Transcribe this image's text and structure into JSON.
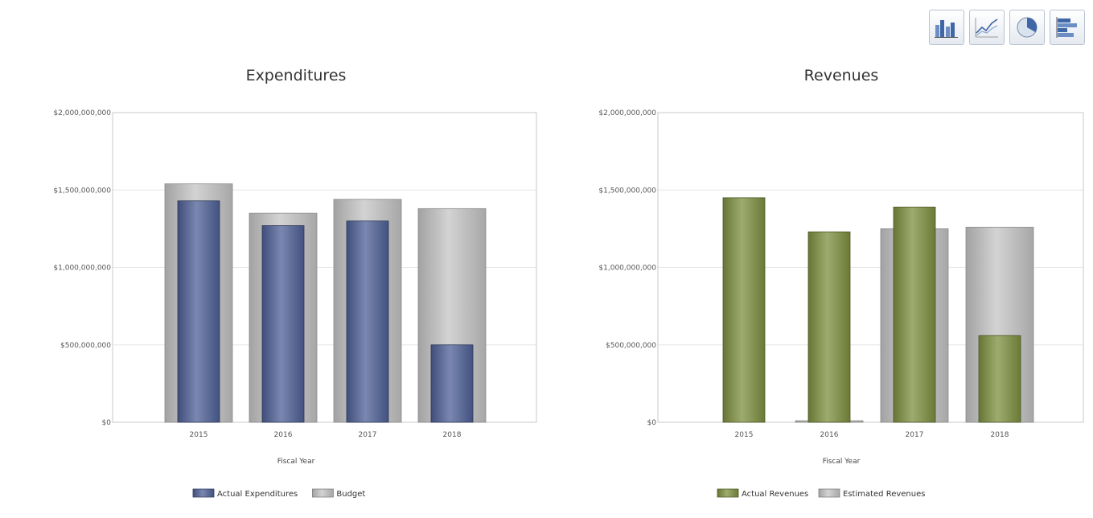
{
  "toolbar": {
    "buttons": [
      {
        "name": "bar-chart-icon"
      },
      {
        "name": "line-chart-icon"
      },
      {
        "name": "pie-chart-icon"
      },
      {
        "name": "horizontal-bar-chart-icon"
      }
    ]
  },
  "colors": {
    "actual_expenditures": "#4e5f95",
    "actual_revenues": "#7d8f3f",
    "budget": "#c4c4c4",
    "gridline": "#e6e6e6",
    "plot_border": "#c8c8c8"
  },
  "chart_data": [
    {
      "type": "bar",
      "title": "Expenditures",
      "xlabel": "Fiscal Year",
      "ylabel": "",
      "categories": [
        "2015",
        "2016",
        "2017",
        "2018"
      ],
      "ylim": [
        0,
        2000000000
      ],
      "yticks": [
        0,
        500000000,
        1000000000,
        1500000000,
        2000000000
      ],
      "ytick_labels": [
        "$0",
        "$500,000,000",
        "$1,000,000,000",
        "$1,500,000,000",
        "$2,000,000,000"
      ],
      "grid": true,
      "legend": "bottom",
      "series": [
        {
          "name": "Budget",
          "values": [
            1540000000,
            1350000000,
            1440000000,
            1380000000
          ]
        },
        {
          "name": "Actual Expenditures",
          "values": [
            1430000000,
            1270000000,
            1300000000,
            500000000
          ]
        }
      ]
    },
    {
      "type": "bar",
      "title": "Revenues",
      "xlabel": "Fiscal Year",
      "ylabel": "",
      "categories": [
        "2015",
        "2016",
        "2017",
        "2018"
      ],
      "ylim": [
        0,
        2000000000
      ],
      "yticks": [
        0,
        500000000,
        1000000000,
        1500000000,
        2000000000
      ],
      "ytick_labels": [
        "$0",
        "$500,000,000",
        "$1,000,000,000",
        "$1,500,000,000",
        "$2,000,000,000"
      ],
      "grid": true,
      "legend": "bottom",
      "series": [
        {
          "name": "Estimated Revenues",
          "values": [
            0,
            10000000,
            1250000000,
            1260000000
          ]
        },
        {
          "name": "Actual Revenues",
          "values": [
            1450000000,
            1230000000,
            1390000000,
            560000000
          ]
        }
      ]
    }
  ]
}
